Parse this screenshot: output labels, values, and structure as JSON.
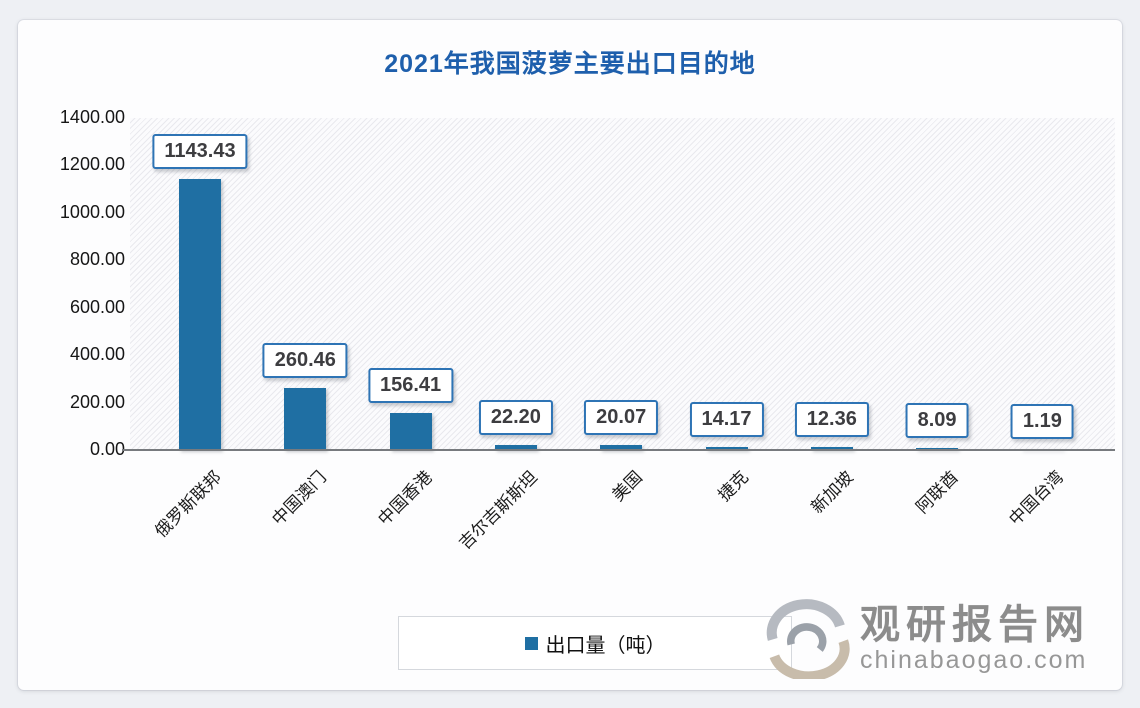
{
  "title": "2021年我国菠萝主要出口目的地",
  "chart_data": {
    "type": "bar",
    "title": "2021年我国菠萝主要出口目的地",
    "categories": [
      "俄罗斯联邦",
      "中国澳门",
      "中国香港",
      "吉尔吉斯斯坦",
      "美国",
      "捷克",
      "新加坡",
      "阿联酋",
      "中国台湾"
    ],
    "values": [
      1143.43,
      260.46,
      156.41,
      22.2,
      20.07,
      14.17,
      12.36,
      8.09,
      1.19
    ],
    "value_labels": [
      "1143.43",
      "260.46",
      "156.41",
      "22.20",
      "20.07",
      "14.17",
      "12.36",
      "8.09",
      "1.19"
    ],
    "xlabel": "",
    "ylabel": "",
    "ylim": [
      0,
      1400
    ],
    "ytick_step": 200,
    "yticks": [
      "1400.00",
      "1200.00",
      "1000.00",
      "800.00",
      "600.00",
      "400.00",
      "200.00",
      "0.00"
    ],
    "grid": false,
    "legend_position": "bottom",
    "legend_entries": [
      "出口量（吨）"
    ],
    "series": [
      {
        "name": "出口量（吨）",
        "values": [
          1143.43,
          260.46,
          156.41,
          22.2,
          20.07,
          14.17,
          12.36,
          8.09,
          1.19
        ]
      }
    ]
  },
  "legend": {
    "label": "出口量（吨）"
  },
  "branding": {
    "site_name": "观研报告网",
    "site_url": "chinabaogao.com"
  },
  "colors": {
    "title_blue": "#1e5fac",
    "bar_blue": "#1f6fa3",
    "label_box_border": "#2e74b5",
    "axis_gray": "#777a7e",
    "brand_gray": "#8c8c8c",
    "brand_tan": "#c8bcab"
  }
}
